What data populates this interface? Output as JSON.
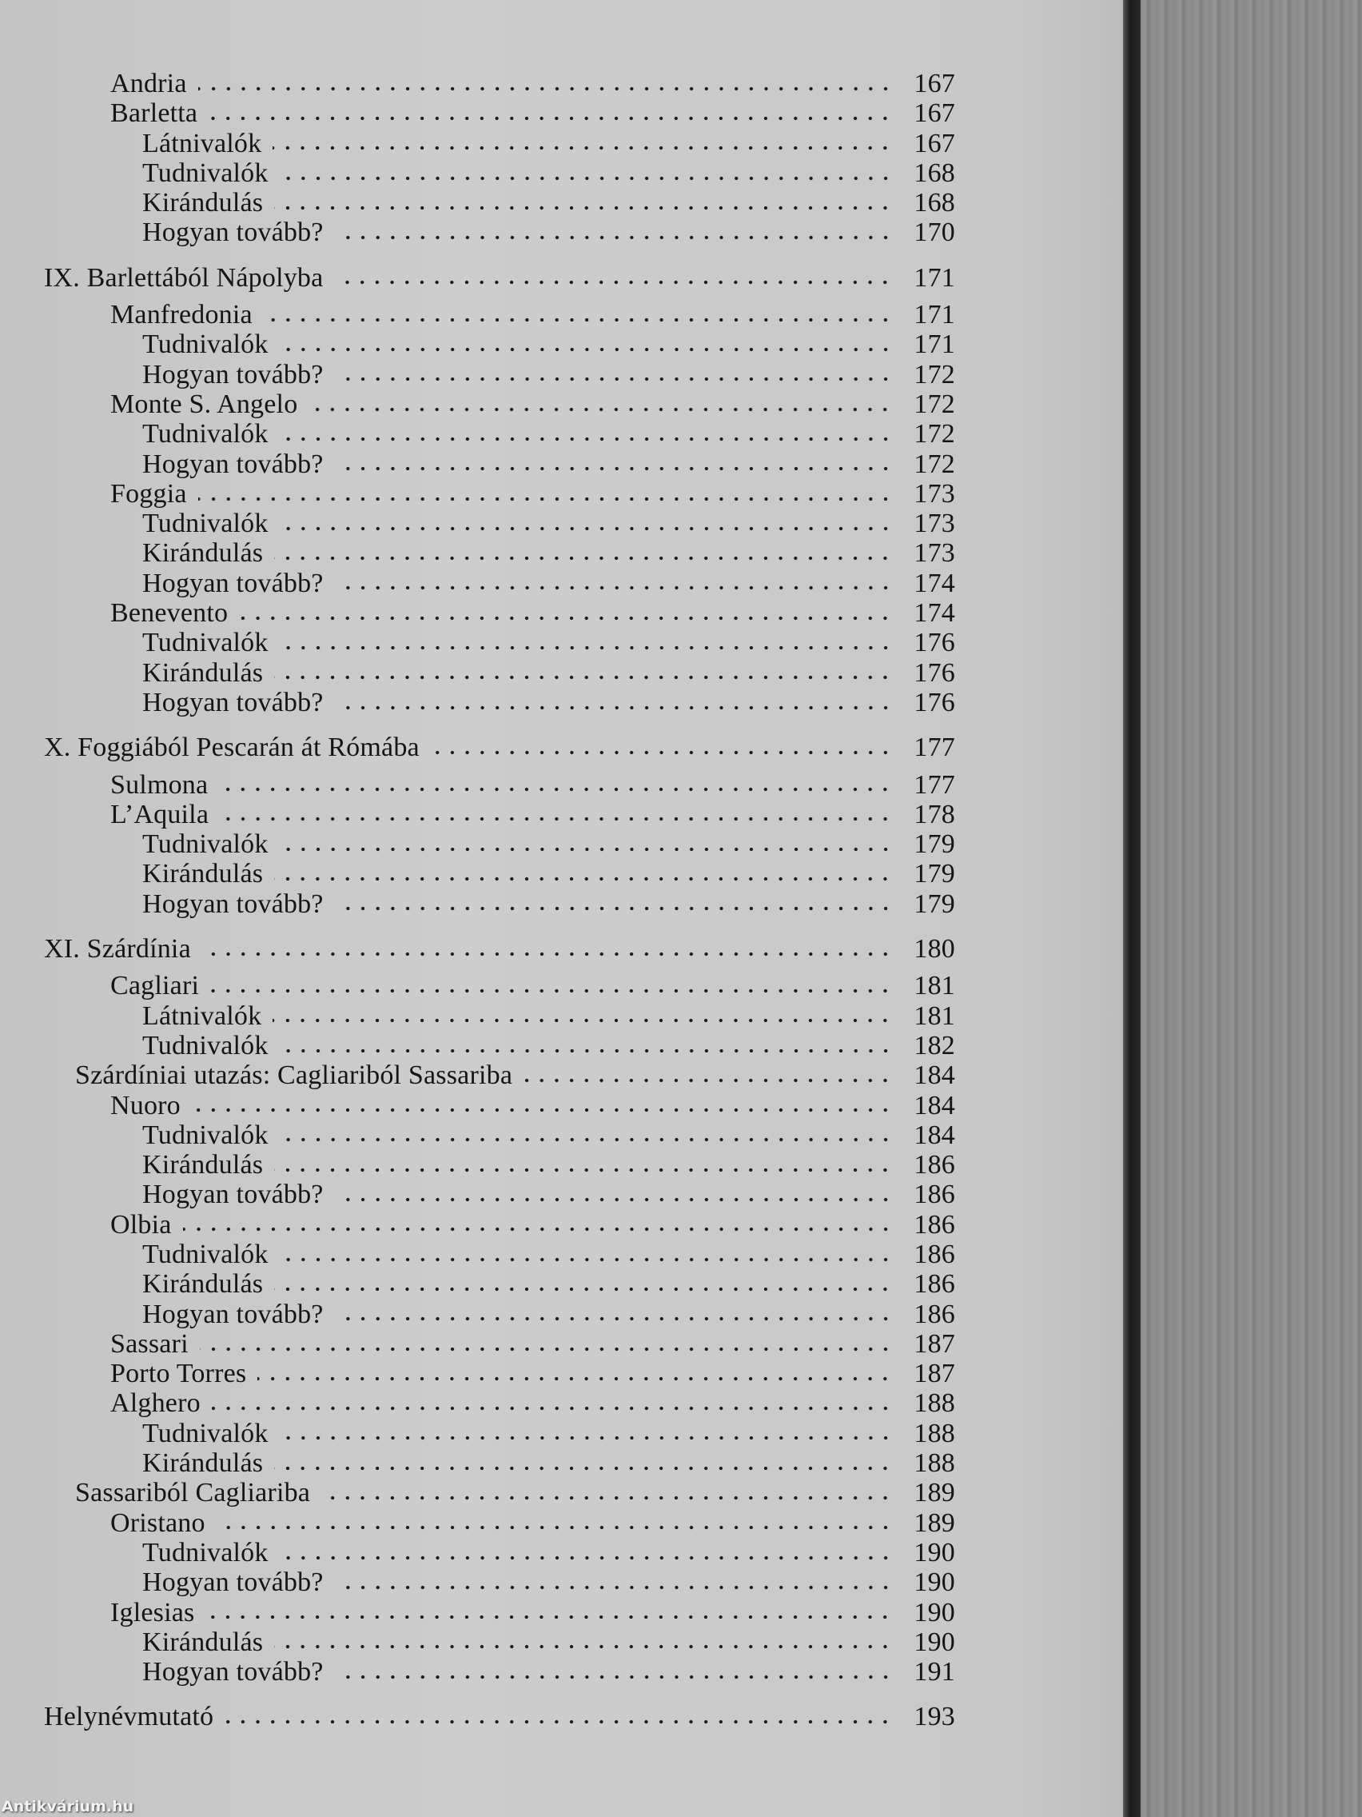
{
  "toc": [
    {
      "level": "1",
      "label": "Andria",
      "page": "167"
    },
    {
      "level": "1",
      "label": "Barletta",
      "page": "167"
    },
    {
      "level": "2",
      "label": "Látnivalók",
      "page": "167"
    },
    {
      "level": "2",
      "label": "Tudnivalók",
      "page": "168"
    },
    {
      "level": "2",
      "label": "Kirándulás",
      "page": "168"
    },
    {
      "level": "2",
      "label": "Hogyan tovább?",
      "page": "170"
    },
    {
      "level": "0",
      "label": "IX. Barlettából Nápolyba",
      "page": "171"
    },
    {
      "level": "1",
      "label": "Manfredonia",
      "page": "171"
    },
    {
      "level": "2",
      "label": "Tudnivalók",
      "page": "171"
    },
    {
      "level": "2",
      "label": "Hogyan tovább?",
      "page": "172"
    },
    {
      "level": "1",
      "label": "Monte S. Angelo",
      "page": "172"
    },
    {
      "level": "2",
      "label": "Tudnivalók",
      "page": "172"
    },
    {
      "level": "2",
      "label": "Hogyan tovább?",
      "page": "172"
    },
    {
      "level": "1",
      "label": "Foggia",
      "page": "173"
    },
    {
      "level": "2",
      "label": "Tudnivalók",
      "page": "173"
    },
    {
      "level": "2",
      "label": "Kirándulás",
      "page": "173"
    },
    {
      "level": "2",
      "label": "Hogyan tovább?",
      "page": "174"
    },
    {
      "level": "1",
      "label": "Benevento",
      "page": "174"
    },
    {
      "level": "2",
      "label": "Tudnivalók",
      "page": "176"
    },
    {
      "level": "2",
      "label": "Kirándulás",
      "page": "176"
    },
    {
      "level": "2",
      "label": "Hogyan tovább?",
      "page": "176"
    },
    {
      "level": "0",
      "label": "X. Foggiából Pescarán át Rómába",
      "page": "177"
    },
    {
      "level": "1",
      "label": "Sulmona",
      "page": "177"
    },
    {
      "level": "1",
      "label": "L’Aquila",
      "page": "178"
    },
    {
      "level": "2",
      "label": "Tudnivalók",
      "page": "179"
    },
    {
      "level": "2",
      "label": "Kirándulás",
      "page": "179"
    },
    {
      "level": "2",
      "label": "Hogyan tovább?",
      "page": "179"
    },
    {
      "level": "0",
      "label": "XI. Szárdínia",
      "page": "180"
    },
    {
      "level": "1",
      "label": "Cagliari",
      "page": "181"
    },
    {
      "level": "2",
      "label": "Látnivalók",
      "page": "181"
    },
    {
      "level": "2",
      "label": "Tudnivalók",
      "page": "182"
    },
    {
      "level": "s",
      "label": "Szárdíniai utazás: Cagliariból Sassariba",
      "page": "184"
    },
    {
      "level": "1",
      "label": "Nuoro",
      "page": "184"
    },
    {
      "level": "2",
      "label": "Tudnivalók",
      "page": "184"
    },
    {
      "level": "2",
      "label": "Kirándulás",
      "page": "186"
    },
    {
      "level": "2",
      "label": "Hogyan tovább?",
      "page": "186"
    },
    {
      "level": "1",
      "label": "Olbia",
      "page": "186"
    },
    {
      "level": "2",
      "label": "Tudnivalók",
      "page": "186"
    },
    {
      "level": "2",
      "label": "Kirándulás",
      "page": "186"
    },
    {
      "level": "2",
      "label": "Hogyan tovább?",
      "page": "186"
    },
    {
      "level": "1",
      "label": "Sassari",
      "page": "187"
    },
    {
      "level": "1",
      "label": "Porto Torres",
      "page": "187"
    },
    {
      "level": "1",
      "label": "Alghero",
      "page": "188"
    },
    {
      "level": "2",
      "label": "Tudnivalók",
      "page": "188"
    },
    {
      "level": "2",
      "label": "Kirándulás",
      "page": "188"
    },
    {
      "level": "s",
      "label": "Sassariból Cagliariba",
      "page": "189"
    },
    {
      "level": "1",
      "label": "Oristano",
      "page": "189"
    },
    {
      "level": "2",
      "label": "Tudnivalók",
      "page": "190"
    },
    {
      "level": "2",
      "label": "Hogyan tovább?",
      "page": "190"
    },
    {
      "level": "1",
      "label": "Iglesias",
      "page": "190"
    },
    {
      "level": "2",
      "label": "Kirándulás",
      "page": "190"
    },
    {
      "level": "2",
      "label": "Hogyan tovább?",
      "page": "191"
    },
    {
      "level": "0",
      "label": "Helynévmutató",
      "page": "193"
    }
  ],
  "watermark": "Antikvárium.hu"
}
